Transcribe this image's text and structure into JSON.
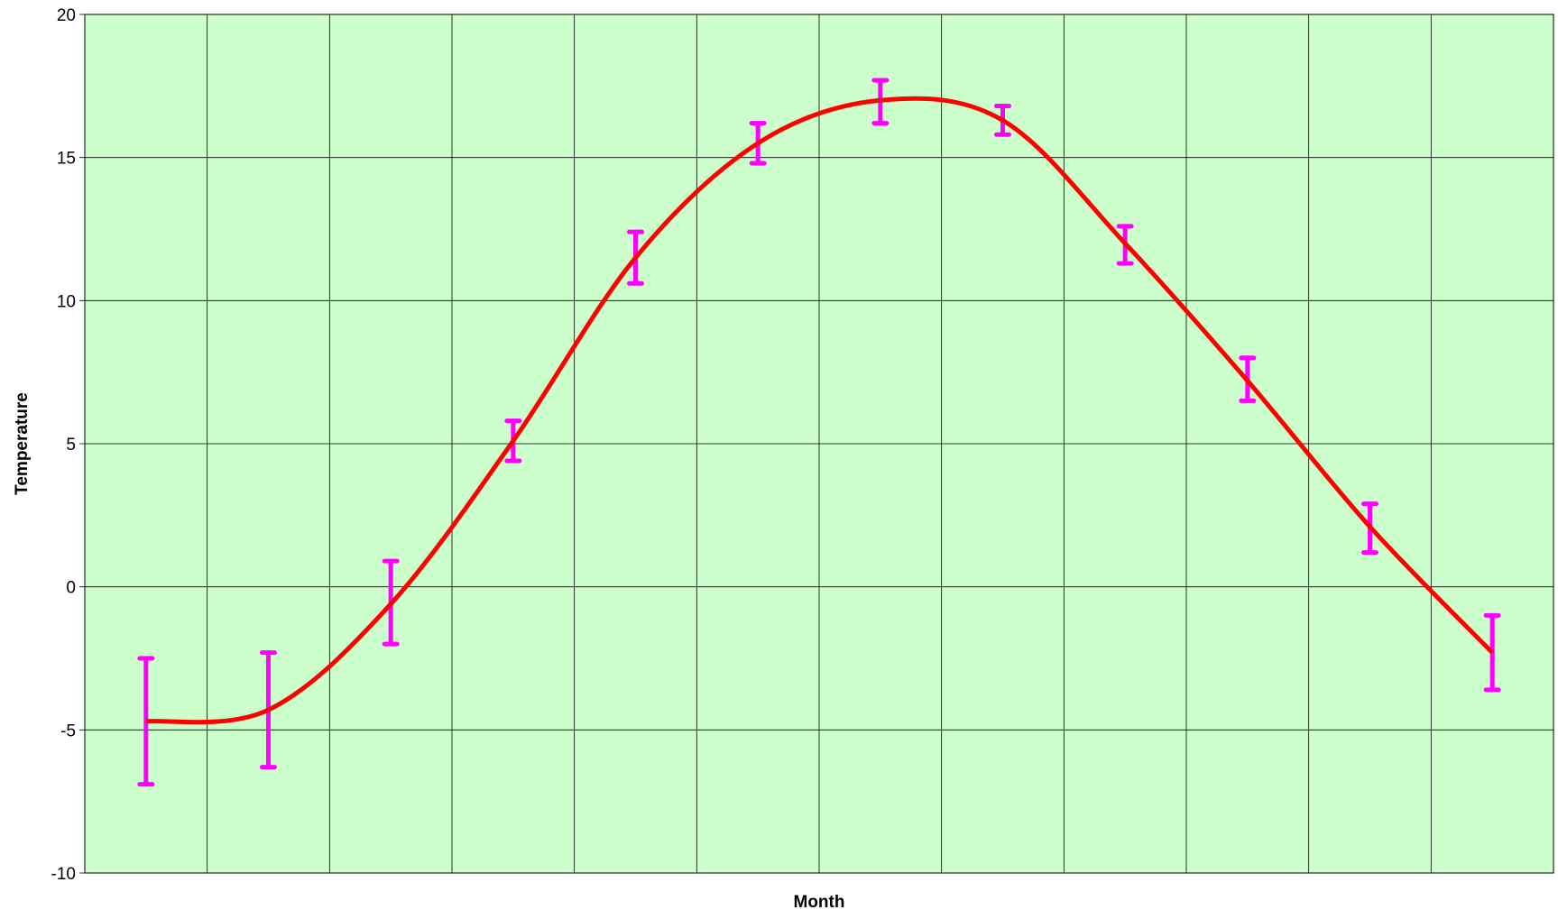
{
  "chart_data": {
    "type": "line",
    "title": "",
    "xlabel": "Month",
    "ylabel": "Temperature",
    "ylim": [
      -10,
      20
    ],
    "yticks": [
      20,
      15,
      10,
      5,
      0,
      -5,
      -10
    ],
    "x": [
      1,
      2,
      3,
      4,
      5,
      6,
      7,
      8,
      9,
      10,
      11,
      12
    ],
    "series": [
      {
        "values": [
          -4.7,
          -4.3,
          -0.6,
          5.1,
          11.5,
          15.5,
          17.0,
          16.3,
          12.0,
          7.2,
          2.1,
          -2.3
        ],
        "error_low": [
          -6.9,
          -6.3,
          -2.0,
          4.4,
          10.6,
          14.8,
          16.2,
          15.8,
          11.3,
          6.5,
          1.2,
          -3.6
        ],
        "error_high": [
          -2.5,
          -2.3,
          0.9,
          5.8,
          12.4,
          16.2,
          17.7,
          16.8,
          12.6,
          8.0,
          2.9,
          -1.0
        ],
        "line_color": "#ff0000",
        "error_bar_color": "#ff00ff"
      }
    ],
    "grid": true,
    "plot_background": "#ccffcc",
    "gridline_color": "#000000"
  }
}
